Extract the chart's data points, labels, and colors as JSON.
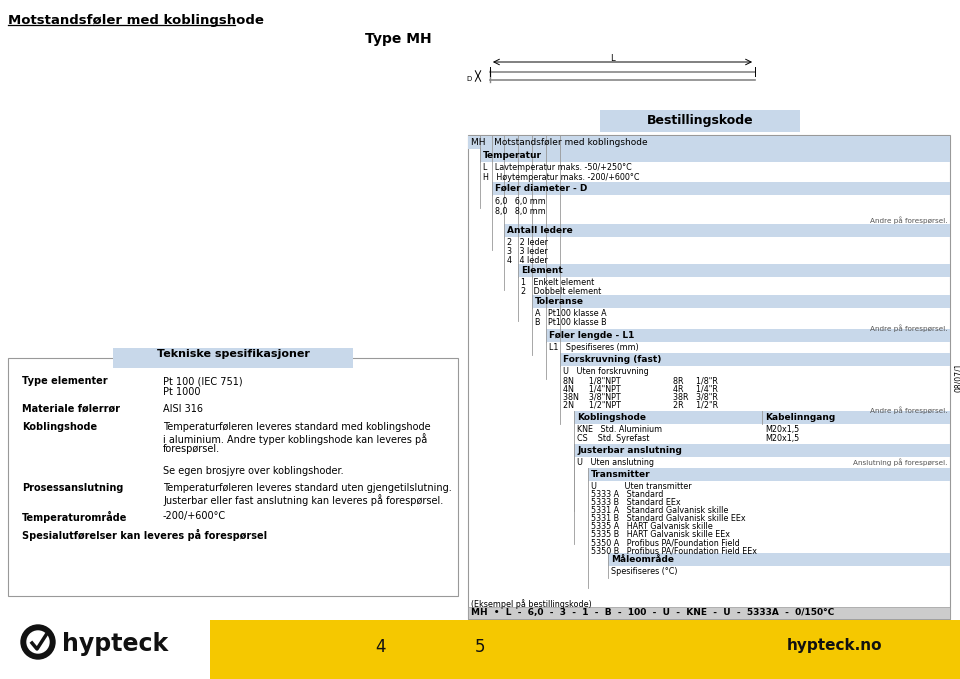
{
  "title": "Motstandsføler med koblingshode",
  "type_label": "Type MH",
  "bestillingskode_label": "Bestillingskode",
  "bg_color": "#ffffff",
  "header_bg": "#c8d8ea",
  "section_hdr_color": "#c8d8ea",
  "yellow_bar": "#f5c800",
  "hypteck_text": "hypteck",
  "hypteck_no": "hypteck.no",
  "page_left": "4",
  "page_right": "5",
  "doc_id": "08/07/1",
  "mh_label": "MH   Motstandsføler med koblingshode",
  "temp_header": "Temperatur",
  "temp_L": "L   Lavtemperatur maks. -50/+250°C",
  "temp_H": "H   Høytemperatur maks. -200/+600°C",
  "foel_diam_header": "Føler diameter - D",
  "foel_60": "6,0   6,0 mm",
  "foel_80": "8,0   8,0 mm",
  "andre": "Andre på forespørsel.",
  "antall_header": "Antall ledere",
  "antall_2": "2   2 leder",
  "antall_3": "3   3 leder",
  "antall_4": "4   4 leder",
  "element_header": "Element",
  "element_1": "1   Enkelt element",
  "element_2": "2   Dobbelt element",
  "toleranse_header": "Toleranse",
  "tol_A": "A   Pt100 klasse A",
  "tol_B": "B   Pt100 klasse B",
  "foel_lengde_header": "Føler lengde - L1",
  "foel_lengde_L1": "L1   Spesifiseres (mm)",
  "forskruvning_header": "Forskruvning (fast)",
  "koblingshode_header": "Koblingshode",
  "kabelinngang_header": "Kabelinngang",
  "KNE": "KNE   Std. Aluminium",
  "CS": "CS    Std. Syrefast",
  "KNE_val": "M20x1,5",
  "CS_val": "M20x1,5",
  "justerbar_header": "Justerbar anslutning",
  "justerbar_U": "U   Uten anslutning",
  "anslutning_txt": "Anslutning på forespørsel.",
  "transmitter_header": "Transmitter",
  "trans_U": "U           Uten transmitter",
  "trans_5333A": "5333 A   Standard",
  "trans_5333B": "5333 B   Standard EEx",
  "trans_5331A": "5331 A   Standard Galvanisk skille",
  "trans_5331B": "5331 B   Standard Galvanisk skille EEx",
  "trans_5335A": "5335 A   HART Galvanisk skille",
  "trans_5335B": "5335 B   HART Galvanisk skille EEx",
  "trans_5350A": "5350 A   Profibus PA/Foundation Field",
  "trans_5350B": "5350 B   Profibus PA/Foundation Field EEx",
  "maleomrade_header": "Måleområde",
  "maleomrade_val": "Spesifiseres (°C)",
  "example_label": "(Eksempel på bestillingskode)",
  "example_code": "MH  •  L  -  6,0  -  3  -  1  -  B  -  100  -  U  -  KNE  -  U  -  5333A  -  0/150°C",
  "tekniske_header": "Tekniske spesifikasjoner",
  "type_elem_label": "Type elementer",
  "type_elem_val1": "Pt 100 (IEC 751)",
  "type_elem_val2": "Pt 1000",
  "mat_label": "Materiale følerrør",
  "mat_val": "AISI 316",
  "kob_label": "Koblingshode",
  "kob_val1": "Temperaturføleren leveres standard med koblingshode",
  "kob_val2": "i aluminium. Andre typer koblingshode kan leveres på",
  "kob_val3": "forespørsel.",
  "kob_val4": "",
  "kob_val5": "Se egen brosjyre over koblingshoder.",
  "pros_label": "Prosessanslutning",
  "pros_val1": "Temperaturføleren leveres standard uten gjengetilslutning.",
  "pros_val2": "Justerbar eller fast anslutning kan leveres på forespørsel.",
  "temp_omr_label": "Temperaturområde",
  "temp_omr_val": "-200/+600°C",
  "spesial_label": "Spesialutførelser kan leveres på forespørsel"
}
